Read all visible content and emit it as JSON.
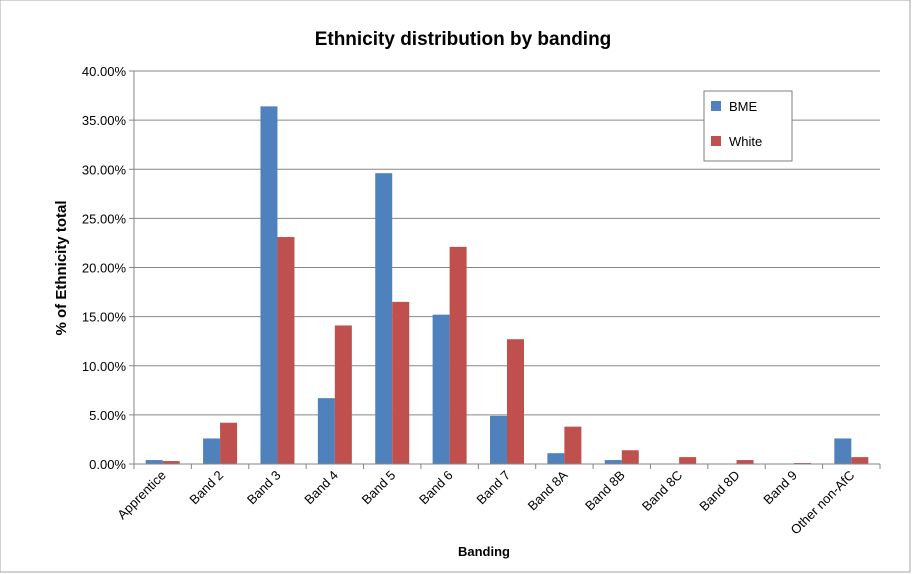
{
  "chart_data": {
    "type": "bar",
    "title": "Ethnicity distribution by banding",
    "xlabel": "Banding",
    "ylabel": "% of Ethnicity total",
    "ylim": [
      0,
      40
    ],
    "y_ticks": [
      "0.00%",
      "5.00%",
      "10.00%",
      "15.00%",
      "20.00%",
      "25.00%",
      "30.00%",
      "35.00%",
      "40.00%"
    ],
    "grid": true,
    "legend_position": "top-right",
    "categories": [
      "Apprentice",
      "Band 2",
      "Band 3",
      "Band 4",
      "Band 5",
      "Band 6",
      "Band 7",
      "Band 8A",
      "Band 8B",
      "Band 8C",
      "Band 8D",
      "Band 9",
      "Other non-AfC"
    ],
    "series": [
      {
        "name": "BME",
        "color": "#4F81BD",
        "values": [
          0.4,
          2.6,
          36.4,
          6.7,
          29.6,
          15.2,
          4.9,
          1.1,
          0.4,
          0.0,
          0.0,
          0.0,
          2.6
        ]
      },
      {
        "name": "White",
        "color": "#C0504D",
        "values": [
          0.3,
          4.2,
          23.1,
          14.1,
          16.5,
          22.1,
          12.7,
          3.8,
          1.4,
          0.7,
          0.4,
          0.1,
          0.7
        ]
      }
    ]
  }
}
